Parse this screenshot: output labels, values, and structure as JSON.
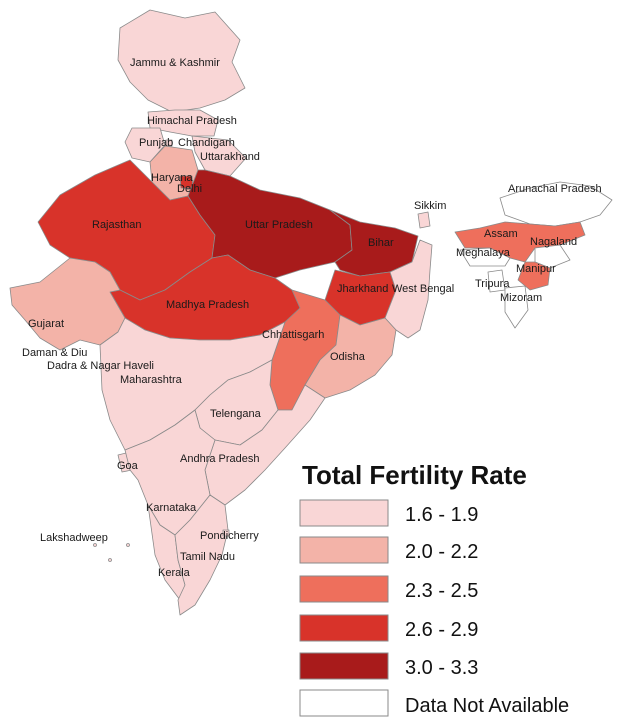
{
  "colors": {
    "c1": "#f9d6d6",
    "c2": "#f3b3a8",
    "c3": "#ee6f5c",
    "c4": "#d8332a",
    "c5": "#a81b1b",
    "na": "#ffffff",
    "border": "#8a8a8a"
  },
  "states": {
    "jk": "Jammu & Kashmir",
    "hp": "Himachal Pradesh",
    "punjab": "Punjab",
    "chandigarh": "Chandigarh",
    "uttarakhand": "Uttarakhand",
    "haryana": "Haryana",
    "delhi": "Delhi",
    "rajasthan": "Rajasthan",
    "up": "Uttar Pradesh",
    "bihar": "Bihar",
    "sikkim": "Sikkim",
    "arunachal": "Arunachal Pradesh",
    "assam": "Assam",
    "nagaland": "Nagaland",
    "meghalaya": "Meghalaya",
    "manipur": "Manipur",
    "tripura": "Tripura",
    "mizoram": "Mizoram",
    "jharkhand": "Jharkhand",
    "wb": "West Bengal",
    "gujarat": "Gujarat",
    "mp": "Madhya Pradesh",
    "chhattisgarh": "Chhattisgarh",
    "odisha": "Odisha",
    "daman": "Daman & Diu",
    "dnh": "Dadra & Nagar Haveli",
    "maharashtra": "Maharashtra",
    "telangana": "Telengana",
    "goa": "Goa",
    "ap": "Andhra Pradesh",
    "karnataka": "Karnataka",
    "lakshadweep": "Lakshadweep",
    "puducherry": "Pondicherry",
    "tn": "Tamil Nadu",
    "kerala": "Kerala"
  },
  "legend": {
    "title": "Total Fertility Rate",
    "items": [
      {
        "label": "1.6 - 1.9",
        "color": "#f9d6d6"
      },
      {
        "label": "2.0 - 2.2",
        "color": "#f3b3a8"
      },
      {
        "label": "2.3 - 2.5",
        "color": "#ee6f5c"
      },
      {
        "label": "2.6 - 2.9",
        "color": "#d8332a"
      },
      {
        "label": "3.0 - 3.3",
        "color": "#a81b1b"
      },
      {
        "label": "Data Not Available",
        "color": "#ffffff"
      }
    ]
  }
}
